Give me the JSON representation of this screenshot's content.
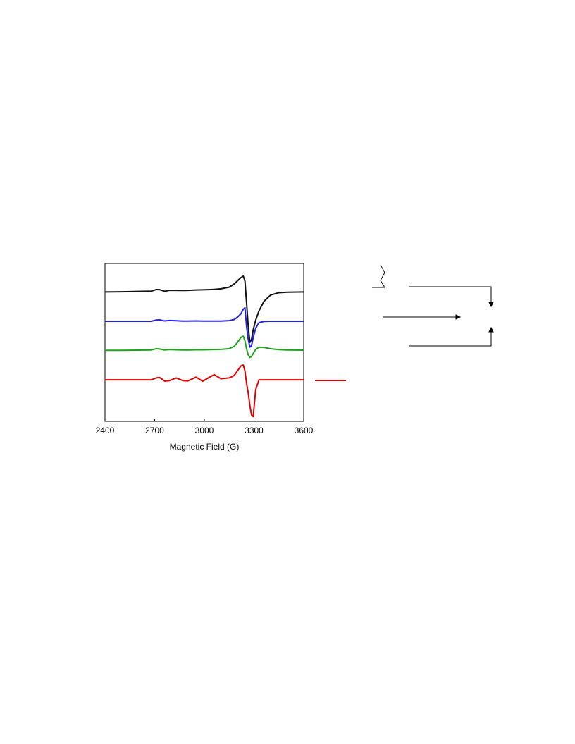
{
  "chart_data": {
    "type": "line",
    "xlabel": "Magnetic Field (G)",
    "xlim": [
      2400,
      3600
    ],
    "xticks": [
      2400,
      2700,
      3000,
      3300,
      3600
    ],
    "ylim": [
      0,
      100
    ],
    "x": [
      2400,
      2500,
      2600,
      2680,
      2710,
      2730,
      2760,
      2790,
      2830,
      2870,
      2900,
      2950,
      2990,
      3040,
      3060,
      3100,
      3150,
      3180,
      3200,
      3220,
      3235,
      3245,
      3255,
      3265,
      3275,
      3285,
      3295,
      3310,
      3330,
      3360,
      3400,
      3450,
      3500,
      3600
    ],
    "series": [
      {
        "color": "#111111",
        "values": [
          82,
          82.1,
          82.3,
          82.5,
          83.5,
          83.4,
          82.4,
          83,
          83,
          82.9,
          83,
          83.2,
          83.3,
          83.5,
          83.6,
          84,
          85,
          87,
          89,
          91,
          92,
          89,
          75,
          60,
          50,
          52,
          58,
          64,
          70,
          76,
          80,
          81.5,
          81.8,
          82
        ]
      },
      {
        "color": "#2222e0",
        "values": [
          63.4,
          63.4,
          63.4,
          63.4,
          64.2,
          64.3,
          63.6,
          63.9,
          63.7,
          63.5,
          63.5,
          63.6,
          63.5,
          63.5,
          63.5,
          63.5,
          63.8,
          64.5,
          66,
          68,
          71,
          72,
          60,
          52,
          47,
          48,
          53,
          59,
          62.5,
          63.3,
          63.4,
          63.4,
          63.4,
          63.4
        ]
      },
      {
        "color": "#22a022",
        "values": [
          45,
          45,
          45.1,
          45.2,
          46,
          45.8,
          45.2,
          45.5,
          45.3,
          45.2,
          45.2,
          45.3,
          45.3,
          45.4,
          45.5,
          45.6,
          46,
          47.5,
          50,
          53,
          54,
          51,
          46,
          42,
          40.5,
          41,
          43,
          45.5,
          47,
          46.8,
          46,
          45.4,
          45.2,
          45.1
        ]
      },
      {
        "color": "#e00000",
        "values": [
          26.3,
          26.3,
          26.3,
          26.3,
          27.5,
          27.8,
          25.5,
          25.8,
          27.5,
          25.8,
          25.6,
          28,
          25.4,
          28.5,
          29.5,
          27,
          27.5,
          29,
          32,
          35,
          35.7,
          32,
          24,
          18,
          10,
          4,
          3,
          20,
          26.3,
          26.3,
          26.3,
          26.3,
          26.3,
          26.3
        ]
      }
    ]
  }
}
